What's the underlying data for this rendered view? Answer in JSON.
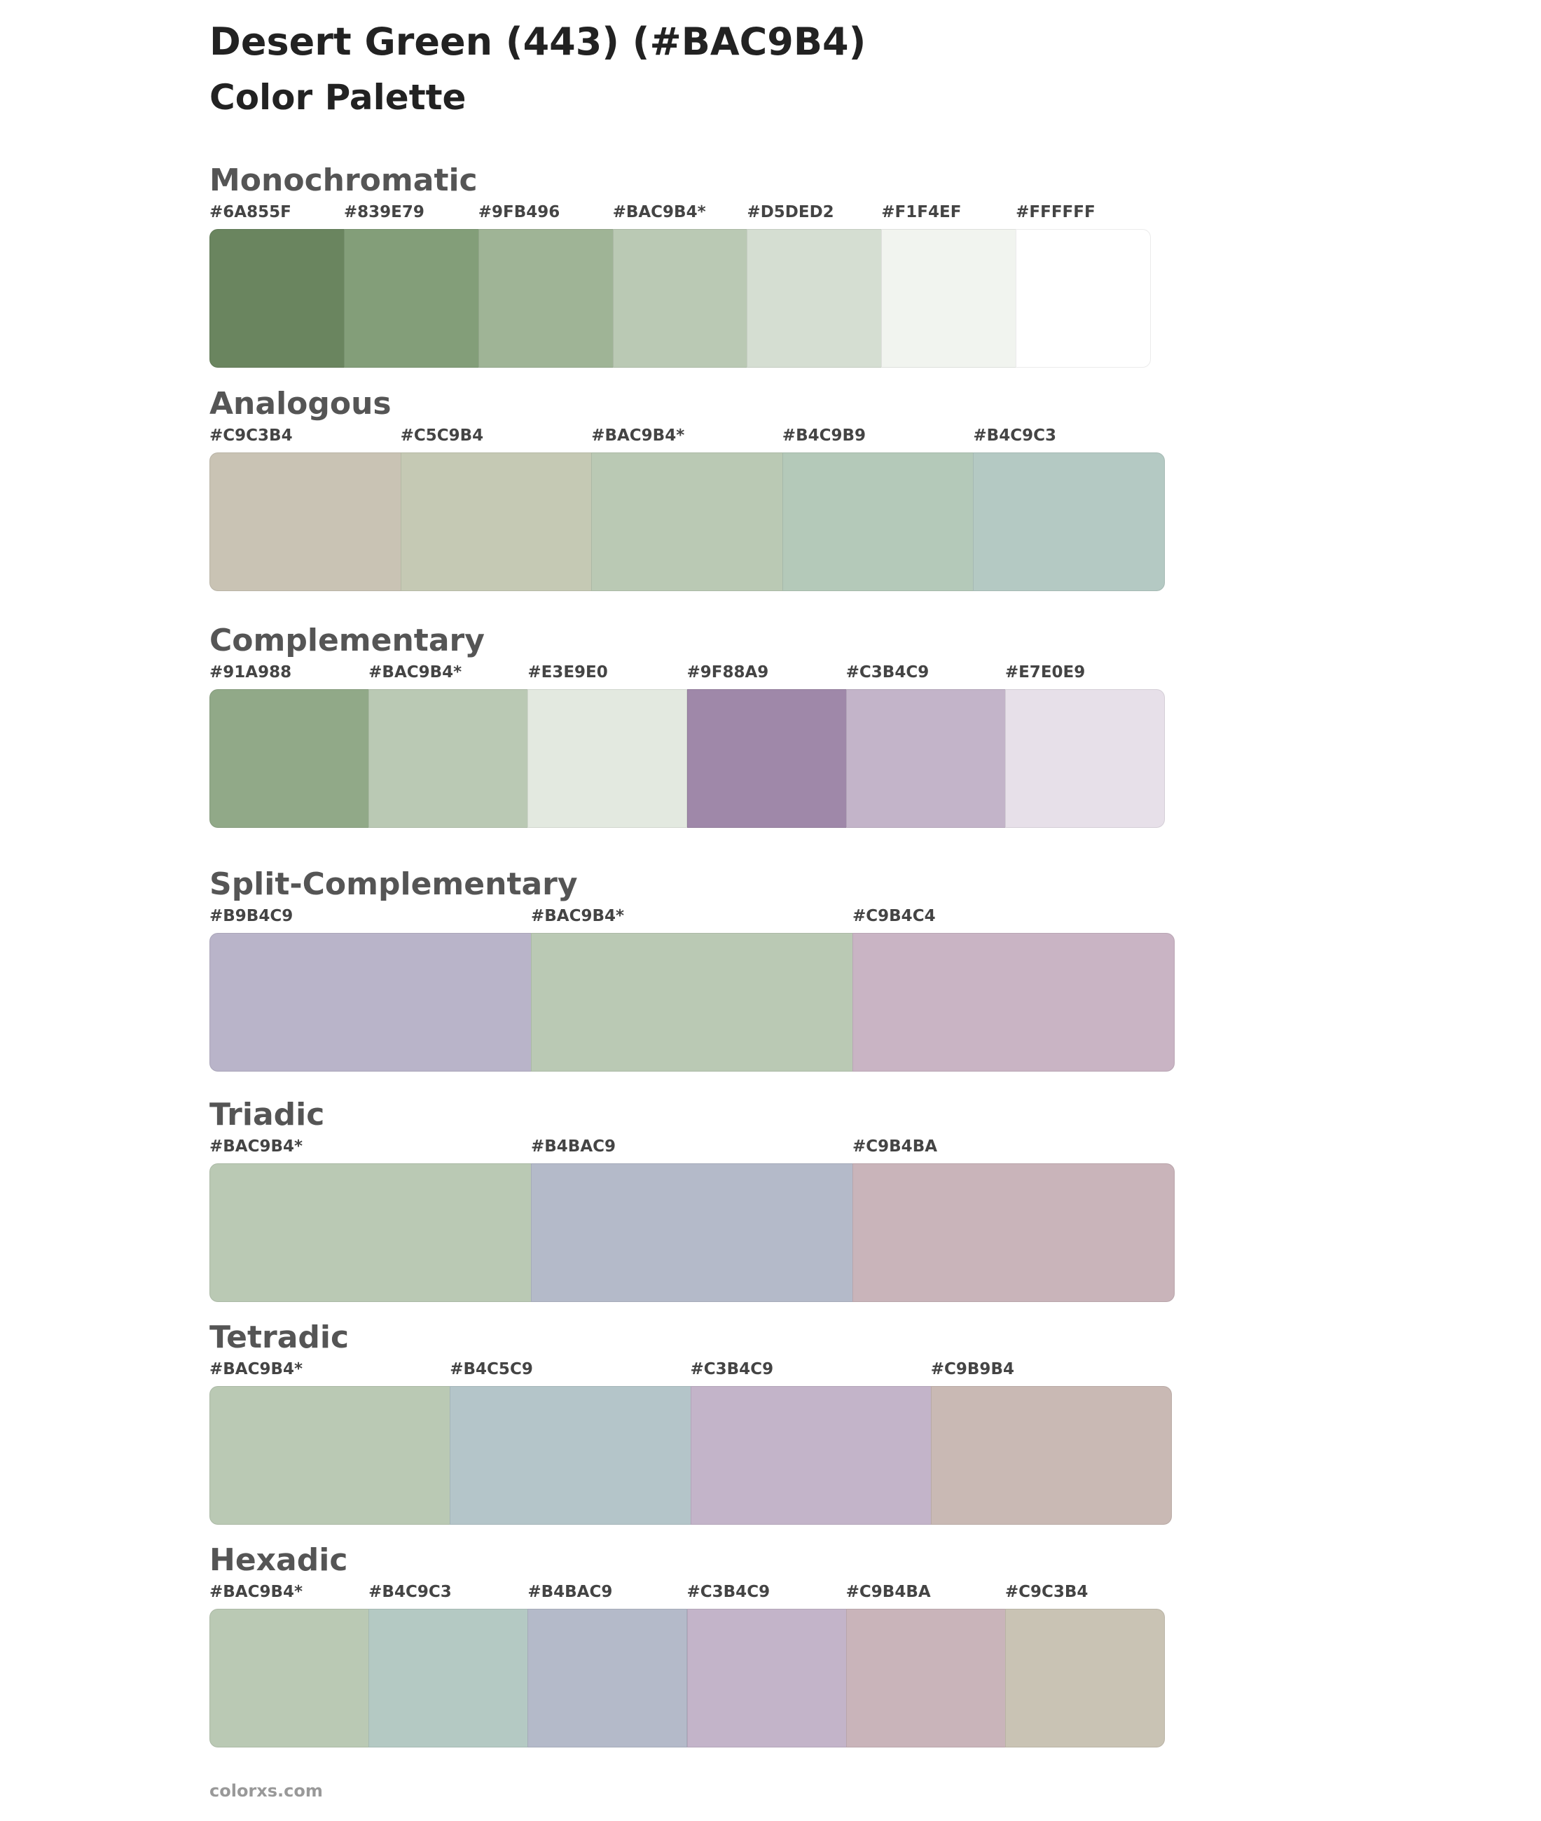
{
  "header": {
    "title": "Desert Green (443) (#BAC9B4)",
    "subtitle": "Color Palette"
  },
  "sections": [
    {
      "title": "Monochromatic",
      "swatches": [
        {
          "label": "#6A855F",
          "color": "#6A855F"
        },
        {
          "label": "#839E79",
          "color": "#839E79"
        },
        {
          "label": "#9FB496",
          "color": "#9FB496"
        },
        {
          "label": "#BAC9B4*",
          "color": "#BAC9B4"
        },
        {
          "label": "#D5DED2",
          "color": "#D5DED2"
        },
        {
          "label": "#F1F4EF",
          "color": "#F1F4EF"
        },
        {
          "label": "#FFFFFF",
          "color": "#FFFFFF"
        }
      ]
    },
    {
      "title": "Analogous",
      "swatches": [
        {
          "label": "#C9C3B4",
          "color": "#C9C3B4"
        },
        {
          "label": "#C5C9B4",
          "color": "#C5C9B4"
        },
        {
          "label": "#BAC9B4*",
          "color": "#BAC9B4"
        },
        {
          "label": "#B4C9B9",
          "color": "#B4C9B9"
        },
        {
          "label": "#B4C9C3",
          "color": "#B4C9C3"
        }
      ]
    },
    {
      "title": "Complementary",
      "swatches": [
        {
          "label": "#91A988",
          "color": "#91A988"
        },
        {
          "label": "#BAC9B4*",
          "color": "#BAC9B4"
        },
        {
          "label": "#E3E9E0",
          "color": "#E3E9E0"
        },
        {
          "label": "#9F88A9",
          "color": "#9F88A9"
        },
        {
          "label": "#C3B4C9",
          "color": "#C3B4C9"
        },
        {
          "label": "#E7E0E9",
          "color": "#E7E0E9"
        }
      ]
    },
    {
      "title": "Split-Complementary",
      "swatches": [
        {
          "label": "#B9B4C9",
          "color": "#B9B4C9"
        },
        {
          "label": "#BAC9B4*",
          "color": "#BAC9B4"
        },
        {
          "label": "#C9B4C4",
          "color": "#C9B4C4"
        }
      ]
    },
    {
      "title": "Triadic",
      "swatches": [
        {
          "label": "#BAC9B4*",
          "color": "#BAC9B4"
        },
        {
          "label": "#B4BAC9",
          "color": "#B4BAC9"
        },
        {
          "label": "#C9B4BA",
          "color": "#C9B4BA"
        }
      ]
    },
    {
      "title": "Tetradic",
      "swatches": [
        {
          "label": "#BAC9B4*",
          "color": "#BAC9B4"
        },
        {
          "label": "#B4C5C9",
          "color": "#B4C5C9"
        },
        {
          "label": "#C3B4C9",
          "color": "#C3B4C9"
        },
        {
          "label": "#C9B9B4",
          "color": "#C9B9B4"
        }
      ]
    },
    {
      "title": "Hexadic",
      "swatches": [
        {
          "label": "#BAC9B4*",
          "color": "#BAC9B4"
        },
        {
          "label": "#B4C9C3",
          "color": "#B4C9C3"
        },
        {
          "label": "#B4BAC9",
          "color": "#B4BAC9"
        },
        {
          "label": "#C3B4C9",
          "color": "#C3B4C9"
        },
        {
          "label": "#C9B4BA",
          "color": "#C9B4BA"
        },
        {
          "label": "#C9C3B4",
          "color": "#C9C3B4"
        }
      ]
    }
  ],
  "footer": "colorxs.com"
}
